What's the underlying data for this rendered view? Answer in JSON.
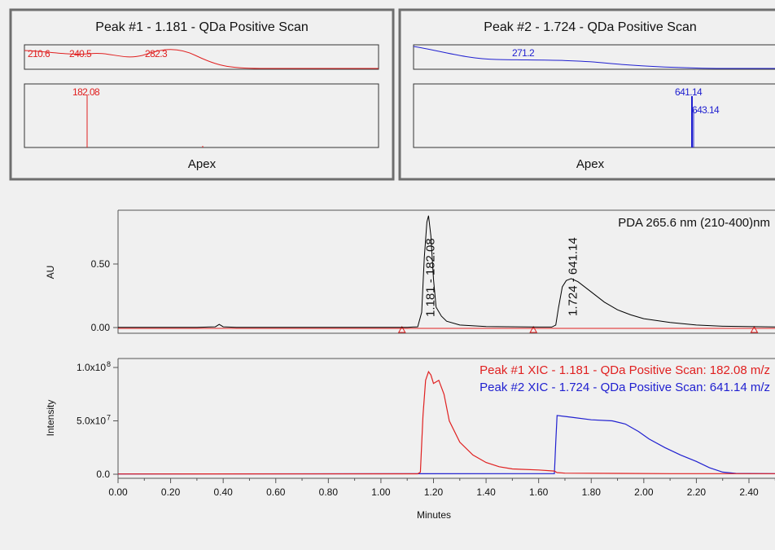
{
  "panels": [
    {
      "title": "Peak #1 - 1.181 - QDa Positive Scan",
      "footer": "Apex",
      "uv_labels": [
        "210.6",
        "240.5",
        "282.3"
      ],
      "ms_labels": [
        "182.08"
      ],
      "color": "#e02020"
    },
    {
      "title": "Peak #2 - 1.724 - QDa Positive Scan",
      "footer": "Apex",
      "uv_labels": [
        "271.2"
      ],
      "ms_labels": [
        "641.14",
        "643.14"
      ],
      "color": "#2020d0"
    }
  ],
  "chart_data": [
    {
      "type": "line",
      "ylabel": "AU",
      "title": "PDA 265.6 nm (210-400)nm",
      "xlim": [
        0.0,
        2.5
      ],
      "ylim": [
        -0.03,
        0.9
      ],
      "ytick_labels": [
        "0.00",
        "0.50"
      ],
      "ytick_values": [
        0.0,
        0.5
      ],
      "series": [
        {
          "color": "#000000",
          "points": [
            [
              0.0,
              0.002
            ],
            [
              0.3,
              0.002
            ],
            [
              0.37,
              0.006
            ],
            [
              0.385,
              0.025
            ],
            [
              0.4,
              0.006
            ],
            [
              0.45,
              0.002
            ],
            [
              1.1,
              0.002
            ],
            [
              1.14,
              0.006
            ],
            [
              1.155,
              0.12
            ],
            [
              1.165,
              0.55
            ],
            [
              1.175,
              0.83
            ],
            [
              1.181,
              0.88
            ],
            [
              1.19,
              0.72
            ],
            [
              1.2,
              0.38
            ],
            [
              1.21,
              0.16
            ],
            [
              1.23,
              0.09
            ],
            [
              1.25,
              0.05
            ],
            [
              1.3,
              0.02
            ],
            [
              1.4,
              0.008
            ],
            [
              1.6,
              0.004
            ],
            [
              1.65,
              0.004
            ],
            [
              1.665,
              0.02
            ],
            [
              1.675,
              0.15
            ],
            [
              1.69,
              0.32
            ],
            [
              1.705,
              0.37
            ],
            [
              1.724,
              0.385
            ],
            [
              1.75,
              0.36
            ],
            [
              1.8,
              0.28
            ],
            [
              1.85,
              0.2
            ],
            [
              1.9,
              0.14
            ],
            [
              1.95,
              0.1
            ],
            [
              2.0,
              0.07
            ],
            [
              2.1,
              0.04
            ],
            [
              2.2,
              0.02
            ],
            [
              2.3,
              0.01
            ],
            [
              2.5,
              0.005
            ]
          ]
        }
      ],
      "peak_labels": [
        {
          "x": 1.181,
          "text": "1.181 - 182.08"
        },
        {
          "x": 1.724,
          "text": "1.724 - 641.14"
        }
      ],
      "baseline_markers": [
        1.08,
        1.58,
        2.42
      ]
    },
    {
      "type": "line",
      "ylabel": "Intensity",
      "xlabel": "Minutes",
      "xlim": [
        0.0,
        2.5
      ],
      "ylim": [
        -5000000.0,
        105000000.0
      ],
      "xtick_labels": [
        "0.00",
        "0.20",
        "0.40",
        "0.60",
        "0.80",
        "1.00",
        "1.20",
        "1.40",
        "1.60",
        "1.80",
        "2.00",
        "2.20",
        "2.40"
      ],
      "xtick_values": [
        0.0,
        0.2,
        0.4,
        0.6,
        0.8,
        1.0,
        1.2,
        1.4,
        1.6,
        1.8,
        2.0,
        2.2,
        2.4
      ],
      "ytick_labels": [
        "0.0",
        "5.0x10",
        "1.0x10"
      ],
      "ytick_exponents": [
        "",
        "7",
        "8"
      ],
      "ytick_values": [
        0,
        50000000.0,
        100000000.0
      ],
      "series": [
        {
          "name": "Peak #1 XIC - 1.181 - QDa Positive Scan: 182.08 m/z",
          "color": "#e02020",
          "points": [
            [
              0.0,
              200000.0
            ],
            [
              1.14,
              400000.0
            ],
            [
              1.15,
              2000000.0
            ],
            [
              1.16,
              55000000.0
            ],
            [
              1.17,
              88000000.0
            ],
            [
              1.181,
              96000000.0
            ],
            [
              1.19,
              93000000.0
            ],
            [
              1.2,
              85000000.0
            ],
            [
              1.22,
              88000000.0
            ],
            [
              1.24,
              75000000.0
            ],
            [
              1.26,
              50000000.0
            ],
            [
              1.3,
              30000000.0
            ],
            [
              1.35,
              18000000.0
            ],
            [
              1.4,
              11000000.0
            ],
            [
              1.45,
              7000000.0
            ],
            [
              1.5,
              5000000.0
            ],
            [
              1.6,
              4000000.0
            ],
            [
              1.66,
              3000000.0
            ],
            [
              1.67,
              1500000.0
            ],
            [
              1.7,
              1000000.0
            ],
            [
              2.1,
              500000.0
            ],
            [
              2.5,
              500000.0
            ]
          ]
        },
        {
          "name": "Peak #2 XIC - 1.724 - QDa Positive Scan: 641.14 m/z",
          "color": "#2020d0",
          "points": [
            [
              0.0,
              300000.0
            ],
            [
              1.66,
              500000.0
            ],
            [
              1.665,
              30000000.0
            ],
            [
              1.67,
              55000000.0
            ],
            [
              1.72,
              53500000.0
            ],
            [
              1.8,
              51000000.0
            ],
            [
              1.88,
              50000000.0
            ],
            [
              1.93,
              47000000.0
            ],
            [
              1.98,
              40000000.0
            ],
            [
              2.02,
              33000000.0
            ],
            [
              2.08,
              25000000.0
            ],
            [
              2.14,
              18000000.0
            ],
            [
              2.2,
              12000000.0
            ],
            [
              2.25,
              6000000.0
            ],
            [
              2.3,
              2000000.0
            ],
            [
              2.35,
              800000.0
            ],
            [
              2.5,
              500000.0
            ]
          ]
        }
      ]
    }
  ]
}
